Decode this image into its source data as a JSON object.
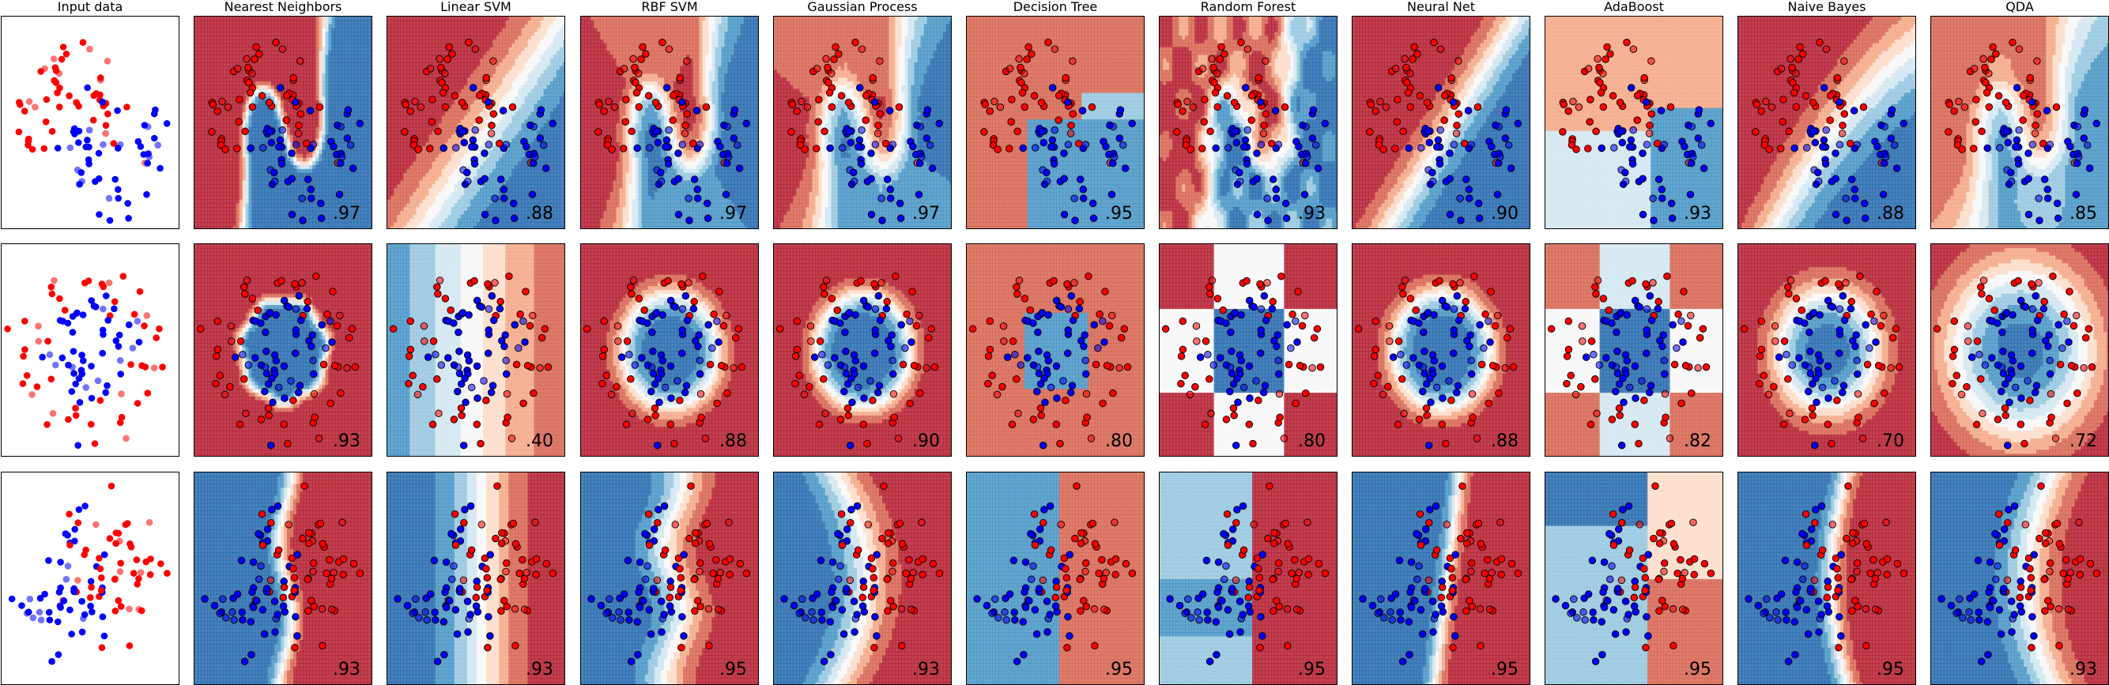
{
  "chart_data": {
    "type": "scatter",
    "description": "Classifier comparison grid: 3 datasets (rows) x 11 columns (input data + 10 classifiers)",
    "columns": [
      "Input data",
      "Nearest Neighbors",
      "Linear SVM",
      "RBF SVM",
      "Gaussian Process",
      "Decision Tree",
      "Random Forest",
      "Neural Net",
      "AdaBoost",
      "Naive Bayes",
      "QDA"
    ],
    "datasets": [
      "moons",
      "circles",
      "linearly separable"
    ],
    "scores": [
      [
        "",
        ".97",
        ".88",
        ".97",
        ".97",
        ".95",
        ".93",
        ".90",
        ".93",
        ".88",
        ".85"
      ],
      [
        "",
        ".93",
        ".40",
        ".88",
        ".90",
        ".80",
        ".80",
        ".88",
        ".82",
        ".70",
        ".72"
      ],
      [
        "",
        ".93",
        ".93",
        ".95",
        ".93",
        ".95",
        ".95",
        ".95",
        ".95",
        ".95",
        ".93"
      ]
    ],
    "class_colors": {
      "class_0": "#ff0000",
      "class_1": "#0000ff"
    },
    "colormap": [
      "#67001f",
      "#b2182b",
      "#d6604d",
      "#f4a582",
      "#fddbc7",
      "#f7f7f7",
      "#d1e5f0",
      "#92c5de",
      "#4393c3",
      "#2166ac",
      "#053061"
    ],
    "grid": false,
    "axes_ticks": "none"
  }
}
